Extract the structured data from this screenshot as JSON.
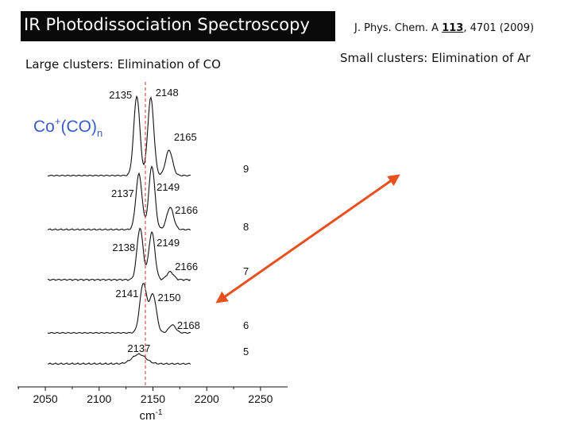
{
  "slide": {
    "title": "IR Photodissociation Spectroscopy",
    "citation": {
      "journal": "J. Phys. Chem. A",
      "volume": "113",
      "pages_year": ", 4701 (2009)"
    },
    "left_subtitle": "Large clusters: Elimination of CO",
    "right_subtitle": "Small clusters: Elimination of Ar"
  },
  "colors": {
    "title_bg": "#0a0a0a",
    "title_fg": "#ffffff",
    "species_label": "#3a5bc7",
    "dashed_line": "#d9534f",
    "arrow": "#e8501e",
    "trace": "#111111"
  },
  "chart_data": {
    "type": "line",
    "species_label": {
      "base": "Co",
      "charge": "+",
      "mid": "(CO)",
      "sub": "n"
    },
    "x_ticks": [
      "2050",
      "2100",
      "2150",
      "2200",
      "2250"
    ],
    "xlabel_base": "cm",
    "xlabel_exp": "-1",
    "xlim": [
      2030,
      2270
    ],
    "reference_line_x": 2143,
    "series": [
      {
        "name": "9",
        "peaks": [
          {
            "x": 2135,
            "label": "2135"
          },
          {
            "x": 2148,
            "label": "2148"
          },
          {
            "x": 2165,
            "label": "2165"
          }
        ]
      },
      {
        "name": "8",
        "peaks": [
          {
            "x": 2137,
            "label": "2137"
          },
          {
            "x": 2149,
            "label": "2149"
          },
          {
            "x": 2166,
            "label": "2166"
          }
        ]
      },
      {
        "name": "7",
        "peaks": [
          {
            "x": 2138,
            "label": "2138"
          },
          {
            "x": 2149,
            "label": "2149"
          },
          {
            "x": 2166,
            "label": "2166"
          }
        ]
      },
      {
        "name": "6",
        "peaks": [
          {
            "x": 2141,
            "label": "2141"
          },
          {
            "x": 2150,
            "label": "2150"
          },
          {
            "x": 2168,
            "label": "2168"
          }
        ]
      },
      {
        "name": "5",
        "peaks": [
          {
            "x": 2137,
            "label": "2137"
          }
        ]
      }
    ]
  }
}
